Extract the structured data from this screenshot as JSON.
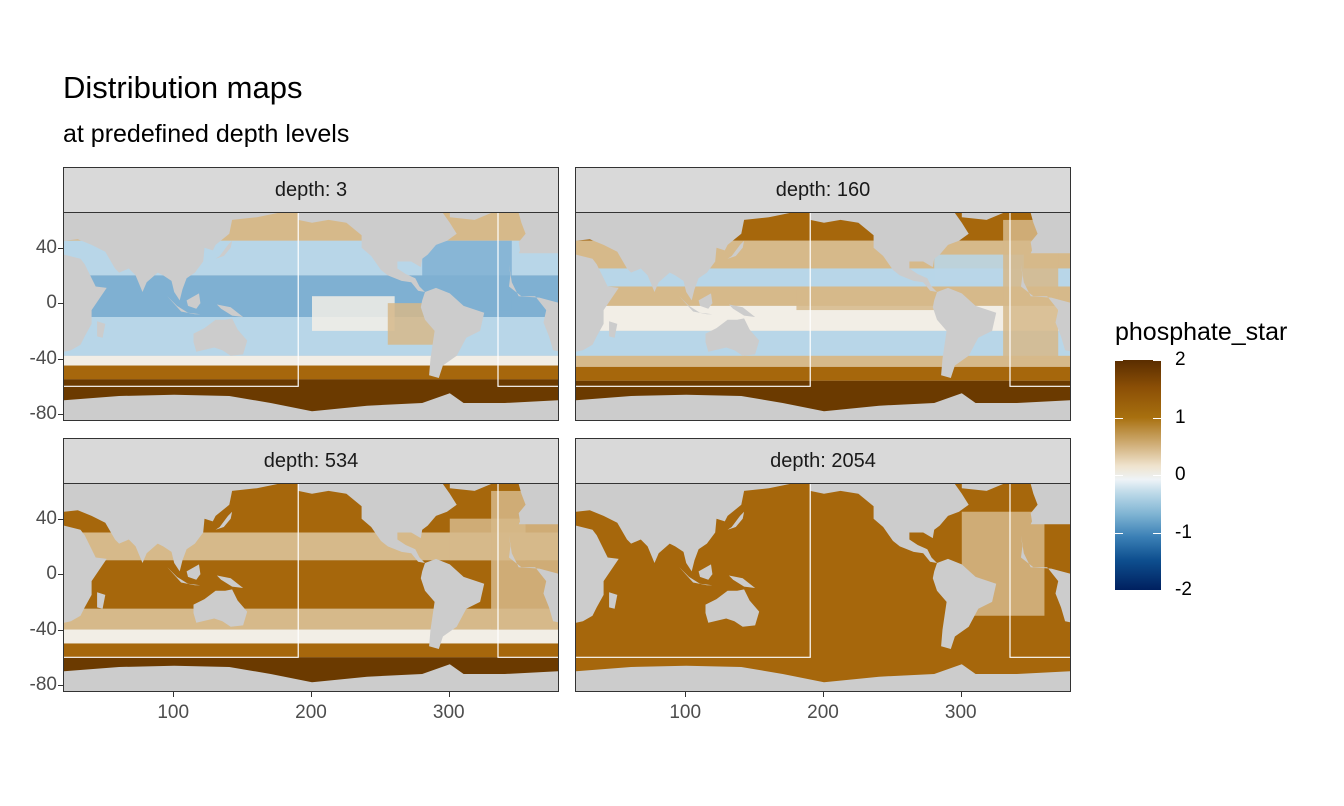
{
  "title": "Distribution maps",
  "subtitle": "at predefined depth levels",
  "colors": {
    "land": "#cccccc",
    "strip": "#d9d9d9",
    "high": "#6b3a00",
    "mid_brown": "#a6670c",
    "tan": "#d6b98a",
    "neutral": "#f2eee6",
    "light_blue": "#b8d6e8",
    "blue": "#7fb0d2"
  },
  "legend": {
    "title": "phosphate_star",
    "ticks": [
      "2",
      "1",
      "0",
      "-1",
      "-2"
    ]
  },
  "chart_data": {
    "type": "heatmap",
    "facet_variable": "depth",
    "panels": [
      {
        "label": "depth: 3",
        "depth": 3,
        "surface_pattern": "mostly negative (blue) in subtropics, strongly positive (dark brown) south of -45"
      },
      {
        "label": "depth: 160",
        "depth": 160,
        "surface_pattern": "mixed; positive equatorial Pacific band, blue subtropical gyres, dark brown Southern Ocean"
      },
      {
        "label": "depth: 534",
        "depth": 534,
        "surface_pattern": "mostly positive (tan to brown), darker in North Pacific and Southern Ocean"
      },
      {
        "label": "depth: 2054",
        "depth": 2054,
        "surface_pattern": "uniformly positive (brown ~1.2), lighter tan in North Atlantic"
      }
    ],
    "x_ticks": [
      "100",
      "200",
      "300"
    ],
    "y_ticks": [
      "40",
      "0",
      "-40",
      "-80"
    ],
    "xlim": [
      20,
      380
    ],
    "ylim": [
      -85,
      65
    ],
    "color_scale": {
      "min": -2,
      "max": 2,
      "palette": "brown-white-blue"
    }
  }
}
